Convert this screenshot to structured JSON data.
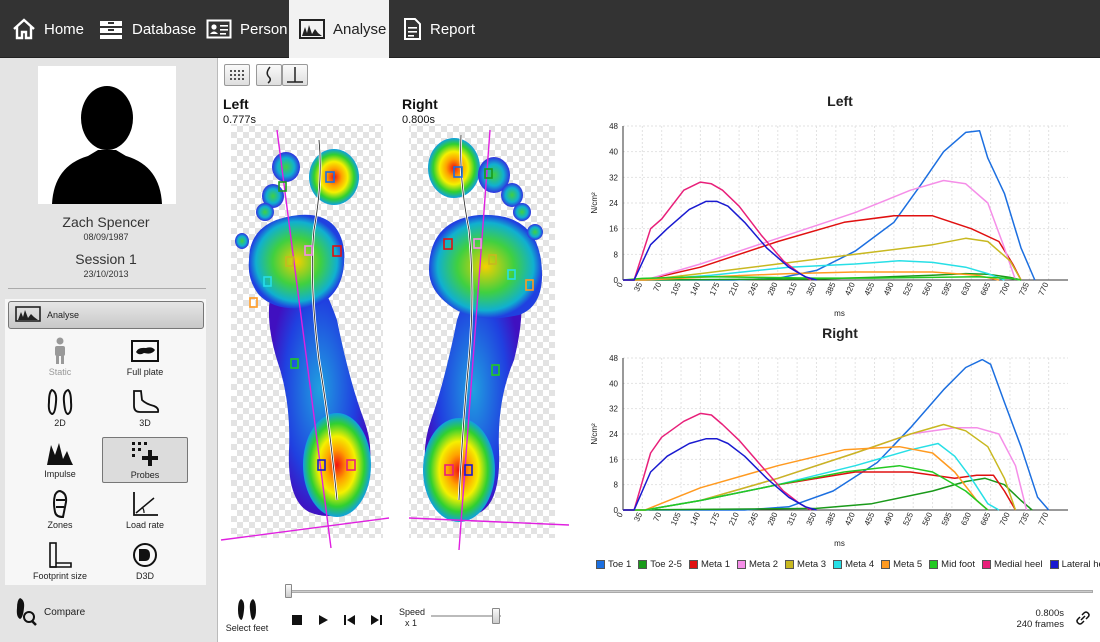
{
  "nav": {
    "tabs": [
      {
        "label": "Home",
        "icon": "home-icon"
      },
      {
        "label": "Database",
        "icon": "database-icon"
      },
      {
        "label": "Person",
        "icon": "person-card-icon"
      },
      {
        "label": "Analyse",
        "icon": "analyse-icon",
        "active": true
      },
      {
        "label": "Report",
        "icon": "report-icon"
      }
    ]
  },
  "profile": {
    "name": "Zach Spencer",
    "birthdate": "08/09/1987",
    "session": "Session 1",
    "session_date": "23/10/2013"
  },
  "tools": {
    "analyse_label": "Analyse",
    "items": [
      {
        "label": "Static",
        "icon": "standing-person-icon",
        "enabled": false
      },
      {
        "label": "Full plate",
        "icon": "full-plate-icon"
      },
      {
        "label": "2D",
        "icon": "footprints-2d-icon"
      },
      {
        "label": "3D",
        "icon": "foot-3d-icon"
      },
      {
        "label": "Impulse",
        "icon": "impulse-icon"
      },
      {
        "label": "Probes",
        "icon": "probes-icon",
        "active": true
      },
      {
        "label": "Zones",
        "icon": "zones-icon"
      },
      {
        "label": "Load rate",
        "icon": "load-rate-icon"
      },
      {
        "label": "Footprint size",
        "icon": "footprint-size-icon"
      },
      {
        "label": "D3D",
        "icon": "d3d-icon"
      }
    ],
    "compare_label": "Compare"
  },
  "feet": {
    "left": {
      "title": "Left",
      "time": "0.777s"
    },
    "right": {
      "title": "Right",
      "time": "0.800s"
    }
  },
  "playback": {
    "select_feet": "Select feet",
    "speed_label": "Speed",
    "speed_value": "x 1",
    "time": "0.800s",
    "frames": "240 frames",
    "speed_slider_fraction": 0.98
  },
  "colors": {
    "Toe 1": "#1c6fe0",
    "Toe 2-5": "#1a9a1a",
    "Meta 1": "#e01010",
    "Meta 2": "#f58ee8",
    "Meta 3": "#c8b820",
    "Meta 4": "#27dfe6",
    "Meta 5": "#ff9a20",
    "Mid foot": "#22c922",
    "Medial heel": "#e8207a",
    "Lateral heel": "#1a1ad0"
  },
  "chart_data": [
    {
      "type": "line",
      "title": "Left",
      "xlabel": "ms",
      "ylabel": "N/cm²",
      "xlim": [
        0,
        805
      ],
      "ylim": [
        0,
        48
      ],
      "xticks": [
        0,
        35,
        70,
        105,
        140,
        175,
        210,
        245,
        280,
        315,
        350,
        385,
        420,
        455,
        490,
        525,
        560,
        595,
        630,
        665,
        700,
        735,
        770
      ],
      "yticks": [
        0,
        8,
        16,
        24,
        32,
        40,
        48
      ],
      "grid": true,
      "legend_position": "bottom",
      "series": [
        {
          "name": "Toe 1",
          "x": [
            0,
            200,
            280,
            350,
            420,
            490,
            540,
            580,
            620,
            645,
            660,
            690,
            720,
            745
          ],
          "y": [
            0,
            0,
            0.5,
            3,
            9,
            18,
            30,
            40,
            46,
            46.5,
            38,
            27,
            10,
            0
          ]
        },
        {
          "name": "Toe 2-5",
          "x": [
            0,
            350,
            450,
            560,
            620,
            660,
            700,
            720
          ],
          "y": [
            0,
            0.3,
            0.8,
            1.5,
            2,
            1.8,
            0.8,
            0
          ]
        },
        {
          "name": "Meta 1",
          "x": [
            0,
            40,
            140,
            280,
            400,
            490,
            560,
            630,
            680,
            705,
            720
          ],
          "y": [
            0,
            0,
            4,
            12,
            18,
            20,
            20,
            16,
            12,
            5,
            0
          ]
        },
        {
          "name": "Meta 2",
          "x": [
            0,
            40,
            140,
            280,
            420,
            520,
            580,
            620,
            660,
            690,
            710
          ],
          "y": [
            0,
            0,
            5,
            13,
            21,
            28,
            31,
            30,
            24,
            10,
            0
          ]
        },
        {
          "name": "Meta 3",
          "x": [
            0,
            40,
            140,
            280,
            420,
            560,
            620,
            660,
            700,
            720
          ],
          "y": [
            0,
            0,
            2,
            5,
            8,
            11,
            13,
            12,
            6,
            0
          ]
        },
        {
          "name": "Meta 4",
          "x": [
            0,
            40,
            160,
            300,
            420,
            500,
            560,
            620,
            660,
            690
          ],
          "y": [
            0,
            0,
            1.5,
            4,
            5,
            6,
            5.5,
            4,
            2,
            0
          ]
        },
        {
          "name": "Meta 5",
          "x": [
            0,
            40,
            160,
            300,
            420,
            560,
            640,
            680
          ],
          "y": [
            0,
            0,
            1,
            2,
            2.5,
            2.5,
            1.5,
            0
          ]
        },
        {
          "name": "Mid foot",
          "x": [
            0,
            35,
            100,
            160,
            250,
            350,
            450,
            560,
            640,
            700,
            720
          ],
          "y": [
            0,
            0.5,
            0.8,
            1,
            0.8,
            0.6,
            0.6,
            0.8,
            1,
            0.5,
            0
          ]
        },
        {
          "name": "Medial heel",
          "x": [
            0,
            20,
            50,
            70,
            110,
            140,
            160,
            180,
            210,
            250,
            290,
            320,
            340
          ],
          "y": [
            0,
            0,
            16,
            19,
            28,
            30.5,
            30,
            28,
            23,
            14,
            6,
            2,
            0
          ]
        },
        {
          "name": "Lateral heel",
          "x": [
            0,
            20,
            50,
            80,
            120,
            150,
            170,
            190,
            220,
            260,
            300,
            330,
            350
          ],
          "y": [
            0,
            0,
            11,
            16,
            22,
            24.5,
            24.5,
            23,
            18,
            10,
            4,
            1,
            0
          ]
        }
      ]
    },
    {
      "type": "line",
      "title": "Right",
      "xlabel": "ms",
      "ylabel": "N/cm²",
      "xlim": [
        0,
        805
      ],
      "ylim": [
        0,
        48
      ],
      "xticks": [
        0,
        35,
        70,
        105,
        140,
        175,
        210,
        245,
        280,
        315,
        350,
        385,
        420,
        455,
        490,
        525,
        560,
        595,
        630,
        665,
        700,
        735,
        770
      ],
      "yticks": [
        0,
        8,
        16,
        24,
        32,
        40,
        48
      ],
      "grid": true,
      "legend_position": "bottom",
      "series": [
        {
          "name": "Toe 1",
          "x": [
            0,
            220,
            300,
            380,
            460,
            520,
            580,
            620,
            650,
            665,
            690,
            720,
            750,
            770
          ],
          "y": [
            0,
            0,
            1,
            6,
            15,
            26,
            38,
            45,
            47.5,
            46,
            34,
            20,
            4,
            0
          ]
        },
        {
          "name": "Toe 2-5",
          "x": [
            0,
            350,
            450,
            560,
            620,
            655,
            690,
            720,
            740
          ],
          "y": [
            0,
            0.5,
            2,
            6,
            9,
            10,
            8,
            3,
            0
          ]
        },
        {
          "name": "Meta 1",
          "x": [
            0,
            40,
            140,
            280,
            420,
            520,
            600,
            640,
            670,
            690,
            710
          ],
          "y": [
            0,
            0,
            3,
            8,
            12,
            12,
            10,
            11,
            11,
            6,
            0
          ]
        },
        {
          "name": "Meta 2",
          "x": [
            0,
            40,
            140,
            280,
            420,
            520,
            600,
            640,
            680,
            710,
            730
          ],
          "y": [
            0,
            0,
            3,
            10,
            18,
            24,
            26,
            26,
            24,
            14,
            0
          ]
        },
        {
          "name": "Meta 3",
          "x": [
            0,
            40,
            140,
            280,
            420,
            520,
            580,
            620,
            660,
            690,
            710
          ],
          "y": [
            0,
            0,
            3,
            10,
            18,
            24,
            27,
            25,
            20,
            10,
            0
          ]
        },
        {
          "name": "Meta 4",
          "x": [
            0,
            40,
            140,
            280,
            420,
            520,
            570,
            600,
            630,
            660,
            680
          ],
          "y": [
            0,
            0,
            3,
            8,
            14,
            19,
            21,
            17,
            10,
            2,
            0
          ]
        },
        {
          "name": "Meta 5",
          "x": [
            0,
            40,
            140,
            280,
            400,
            500,
            560,
            600,
            640,
            660
          ],
          "y": [
            0,
            0,
            7,
            14,
            19,
            20,
            18,
            12,
            3,
            0
          ]
        },
        {
          "name": "Mid foot",
          "x": [
            0,
            40,
            140,
            280,
            400,
            500,
            560,
            620,
            660
          ],
          "y": [
            0,
            0,
            3,
            8,
            12,
            14,
            12,
            6,
            0
          ]
        },
        {
          "name": "Medial heel",
          "x": [
            0,
            20,
            50,
            70,
            110,
            140,
            160,
            180,
            210,
            250,
            290,
            320,
            340
          ],
          "y": [
            0,
            0,
            18,
            23,
            28,
            30.5,
            30,
            27,
            22,
            14,
            6,
            2,
            0
          ]
        },
        {
          "name": "Lateral heel",
          "x": [
            0,
            20,
            50,
            80,
            120,
            150,
            170,
            190,
            220,
            260,
            300,
            330,
            350
          ],
          "y": [
            0,
            0,
            12,
            17,
            21,
            22.5,
            22.5,
            21,
            17,
            10,
            4,
            1,
            0
          ]
        }
      ]
    }
  ]
}
